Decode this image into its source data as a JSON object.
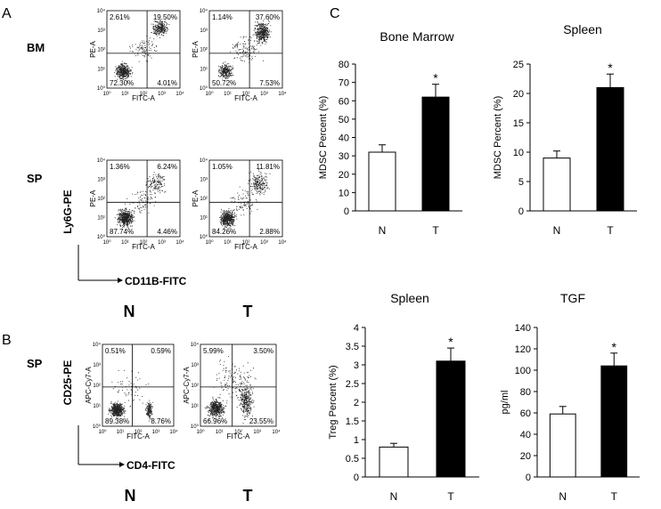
{
  "panel_labels": {
    "a": "A",
    "b": "B",
    "c": "C"
  },
  "panel_a": {
    "rows": [
      "BM",
      "SP"
    ],
    "y_marker": "Ly6G-PE",
    "x_marker": "CD11B-FITC",
    "group_labels": [
      "N",
      "T"
    ],
    "plot_x_axis": "FITC-A",
    "plot_y_axis": "PE-A",
    "decade_ticks": [
      "10⁰",
      "10¹",
      "10²",
      "10³",
      "10⁴"
    ],
    "plots": [
      {
        "row": "BM",
        "group": "N",
        "ul": "2.61%",
        "ur": "19.50%",
        "ll": "72.30%",
        "lr": "4.01%"
      },
      {
        "row": "BM",
        "group": "T",
        "ul": "1.14%",
        "ur": "37.60%",
        "ll": "50.72%",
        "lr": "7.53%"
      },
      {
        "row": "SP",
        "group": "N",
        "ul": "1.36%",
        "ur": "6.24%",
        "ll": "87.74%",
        "lr": "4.46%"
      },
      {
        "row": "SP",
        "group": "T",
        "ul": "1.05%",
        "ur": "11.81%",
        "ll": "84.26%",
        "lr": "2.88%"
      }
    ]
  },
  "panel_b": {
    "row": "SP",
    "y_marker": "CD25-PE",
    "x_marker": "CD4-FITC",
    "group_labels": [
      "N",
      "T"
    ],
    "plot_x_axis": "FITC-A",
    "plot_y_axis": "APC-Cy7-A",
    "decade_ticks": [
      "10⁰",
      "10¹",
      "10²",
      "10³",
      "10⁴"
    ],
    "plots": [
      {
        "group": "N",
        "ul": "0.51%",
        "ur": "0.59%",
        "ll": "89.38%",
        "lr": "8.76%"
      },
      {
        "group": "T",
        "ul": "5.99%",
        "ur": "3.50%",
        "ll": "66.96%",
        "lr": "23.55%"
      }
    ]
  },
  "chart_data": [
    {
      "type": "bar",
      "title": "Bone Marrow",
      "ylabel": "MDSC Percent (%)",
      "xlabel": "",
      "categories": [
        "N",
        "T"
      ],
      "values": [
        32,
        62
      ],
      "errors": [
        4,
        7
      ],
      "significance": [
        "",
        "*"
      ],
      "ylim": [
        0,
        80
      ],
      "yticks": [
        0,
        10,
        20,
        30,
        40,
        50,
        60,
        70,
        80
      ],
      "tick_format": "0",
      "bar_colors": [
        "#ffffff",
        "#000000"
      ]
    },
    {
      "type": "bar",
      "title": "Spleen",
      "ylabel": "MDSC Percent (%)",
      "xlabel": "",
      "categories": [
        "N",
        "T"
      ],
      "values": [
        9,
        21
      ],
      "errors": [
        1.2,
        2.3
      ],
      "significance": [
        "",
        "*"
      ],
      "ylim": [
        0,
        25
      ],
      "yticks": [
        0,
        5,
        10,
        15,
        20,
        25
      ],
      "tick_format": "0",
      "bar_colors": [
        "#ffffff",
        "#000000"
      ]
    },
    {
      "type": "bar",
      "title": "Spleen",
      "ylabel": "Treg Percent (%)",
      "xlabel": "",
      "categories": [
        "N",
        "T"
      ],
      "values": [
        0.8,
        3.1
      ],
      "errors": [
        0.1,
        0.35
      ],
      "significance": [
        "",
        "*"
      ],
      "ylim": [
        0,
        4
      ],
      "yticks": [
        0,
        0.5,
        1,
        1.5,
        2,
        2.5,
        3,
        3.5,
        4
      ],
      "tick_format": "g",
      "bar_colors": [
        "#ffffff",
        "#000000"
      ]
    },
    {
      "type": "bar",
      "title": "TGF",
      "ylabel": "pg/ml",
      "xlabel": "",
      "categories": [
        "N",
        "T"
      ],
      "values": [
        59,
        104
      ],
      "errors": [
        7,
        12
      ],
      "significance": [
        "",
        "*"
      ],
      "ylim": [
        0,
        140
      ],
      "yticks": [
        0,
        20,
        40,
        60,
        80,
        100,
        120,
        140
      ],
      "tick_format": "0",
      "bar_colors": [
        "#ffffff",
        "#000000"
      ]
    }
  ]
}
